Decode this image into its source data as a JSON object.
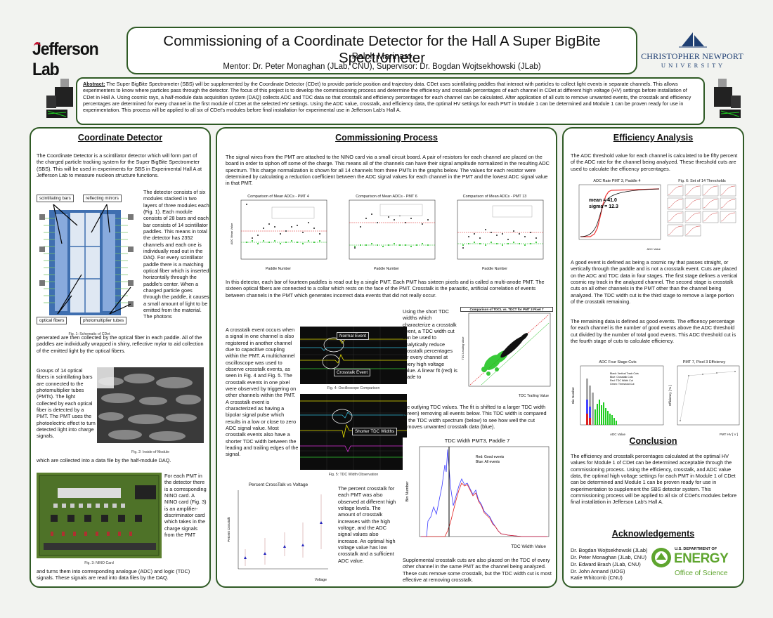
{
  "header": {
    "title": "Commissioning of a Coordinate Detector for the Hall A Super BigBite Spectrometer",
    "author": "Ralph Marinaro",
    "mentor": "Mentor:  Dr. Peter Monaghan (JLab, CNU), Supervisor: Dr. Bogdan Wojtsekhowski (JLab)",
    "logo_left": "Jefferson Lab",
    "logo_right_line1": "CHRISTOPHER NEWPORT",
    "logo_right_line2": "U N I V E R S I T Y"
  },
  "abstract": {
    "label": "Abstract:",
    "text": " The Super BigBite Spectrometer (SBS) will be supplemented by the Coordinate Detector (CDet) to provide particle position and trajectory data. CDet uses scintillating paddles that interact with particles to collect light events in separate channels. This allows experimenters to know where particles pass through the detector.  The focus of this project is to develop the commissioning process and determine the efficiency and crosstalk percentages of each channel in CDet at different high voltage (HV) settings before installation of CDet in Hall A. Using cosmic rays, a half-module data acquisition system (DAQ) collects ADC and TDC data so that crosstalk and efficiency percentages for each channel can be calculated. After application of all cuts to remove unwanted events, the crosstalk and efficiency percentages are determined for every channel in the first module of CDet at the selected HV settings. Using the ADC value, crosstalk, and efficiency data, the optimal HV settings for each PMT in Module 1 can be determined and Module 1 can be proven ready for use in experimentation. This process will be applied to all six of CDet's modules before final installation for experimental use in Jefferson Lab's Hall A."
  },
  "left": {
    "title": "Coordinate Detector",
    "p1": "The Coordinate Detector is a scintillator detector which will form part of the charged particle tracking system for the Super BigBite Spectrometer (SBS). This will be used in experiments for SBS in Experimental Hall A at Jefferson Lab to measure nucleon structure functions.",
    "labels": [
      "scintillating bars",
      "reflecting mirrors",
      "optical fibers",
      "photomultiplier tubes"
    ],
    "p2": "The detector consists of six modules stacked in two layers of three modules each (Fig. 1). Each module consists of 28 bars and each bar consists of 14 scintillator paddles. This means in total the detector has 2352 channels and each one is individually read out in the DAQ. For every scintillator paddle there is a matching optical fiber which is inserted horizontally through the paddle's center. When a charged particle goes through the paddle, it causes a small amount of light to be emitted from the material. The photons",
    "p2b": "generated are then collected by the optical fiber in each paddle. All of the paddles are individually wrapped in shiny, reflective mylar to aid collection of the emitted light by the optical fibers.",
    "fig1": "Fig. 1: Schematic of CDet",
    "p3": "Groups of 14 optical fibers in scintillating bars are connected to the photomultiplier tubes (PMTs). The light collected by each optical fiber is detected by a PMT. The PMT uses the photoelectric effect to turn detected light into charge signals,",
    "p3b": "which are collected into a data file by the half-module DAQ.",
    "fig2": "Fig. 2: Inside of Module",
    "p4": "For each PMT in the detector there is a corresponding NINO card. A NINO card (Fig. 3) is an amplifier-discriminator card which takes in the charge signals from the PMT",
    "p4b": "and turns them into corresponding analogue (ADC) and logic (TDC) signals. These signals are read into data files by the DAQ.",
    "fig3": "Fig. 3: NINO Card"
  },
  "middle": {
    "title": "Commissioning Process",
    "p1": "The signal wires from the PMT are attached to the NINO card via a small circuit board. A pair of resistors for each channel are placed on the board in order to siphon off some of the charge. This means all of the channels can have their signal amplitude normalized in the resulting ADC spectrum. This charge normalization is shown for all 14 channels from three PMTs in the graphs below. The values for each resistor were determined by calculating a reduction coefficient between the ADC signal values for each channel in the PMT and the lowest ADC signal value in that PMT.",
    "p2": "In this detector, each bar of fourteen paddles is read out by a single PMT. Each PMT has sixteen pixels and is called a multi-anode PMT. The sixteen optical fibers are connected to a collar which rests on the face of the PMT. Crosstalk is the parasitic, artificial correlation of events between channels in the PMT which generates incorrect data events that did not really occur.",
    "p3": "A crosstalk event occurs when a signal in one channel is also registered in another channel due to capacitive coupling within the PMT. A multichannel oscilloscope was used to observe crosstalk events, as seen in Fig. 4 and Fig. 5. The crosstalk events in one pixel were observed by triggering on other channels within the PMT. A crosstalk event is characterized as having a bipolar signal pulse which results in a low or close to zero ADC signal value. Most crosstalk events also have a shorter TDC width between the leading and trailing edges of the signal.",
    "p4": "Using the short TDC widths which characterize a crosstalk event, a TDC width cut can be used to analytically reduce crosstalk percentages for every channel at every high voltage value. A linear fit (red) is made to",
    "p4b": "the outlying TDC values. The fit is shifted to a larger TDC width (green) removing all events below. This TDC width is compared to the TDC width spectrum (below) to see how well the cut removes unwanted crosstalk data (blue).",
    "p5": "The percent crosstalk for each PMT was also observed at different high voltage levels. The amount of crosstalk increases with the high voltage, and the ADC signal values also increase. An optimal high voltage value has low crosstalk and a sufficient ADC value.",
    "p6": "Supplemental crosstalk cuts are also placed on the TDC of every other channel in the same PMT as the channel being analyzed. These cuts remove some crosstalk, but the TDC width cut is most effective at removing crosstalk.",
    "adc_plot_titles": [
      "Comparison of Mean ADCs - PMT 4",
      "Comparison of Mean ADCs - PMT 6",
      "Comparison of Mean ADCs - PMT 13"
    ],
    "adc_xlabel": "Paddle Number",
    "adc_ylabel": "ADC Mean Value",
    "adc_legend": [
      "run 1306: Before resistors",
      "run 1388: After resistors"
    ],
    "osc_labels": [
      "Normal Event",
      "Crosstalk Event",
      "Shorter TDC Widths"
    ],
    "fig4": "Fig. 4: Oscilloscope Comparison",
    "fig5": "Fig. 5: TDC Width Observation",
    "tdc_title": "Comparison of TDCL vs. TDCT for PMT 3 Pixel 7",
    "tdc_xlabel": "TDC Trailing Value",
    "tdc_ylabel": "TDC Leading Value",
    "ct_title": "Percent CrossTalk vs Voltage",
    "ct_xlabel": "Voltage",
    "ct_ylabel": "Percent Crosstalk",
    "tw_title": "TDC Width PMT3, Paddle 7",
    "tw_xlabel": "TDC Width Value",
    "tw_ylabel": "Bin Number",
    "tw_legend": [
      "Red: Good events",
      "Blue: All events"
    ]
  },
  "right": {
    "title": "Efficiency Analysis",
    "p1": "The ADC threshold value for each channel is calculated to be fifty percent of the ADC rate for the channel being analyzed. These threshold cuts are used to calculate the efficency percentages.",
    "rate_title": "ADC Rate PMT 3, Paddle 4",
    "rate_stats": [
      "mean = 41.0",
      "sigma = 12.3"
    ],
    "rate_xlabel": "ADC Value",
    "thresh_title": "Fig. 6: Set of 14 Thresholds",
    "p2": "A good event is defined as being a cosmic ray that passes straight, or vertically through the paddle and is not a crosstalk event. Cuts are placed on the ADC and TDC data in four stages. The first stage defines a vertical cosmic ray track in the analyzed channel. The second stage is crosstalk cuts on all other channels in the PMT other than the channel being analyzed. The TDC width cut is the third stage to remove a large portion of the crosstalk remaining.",
    "p3": "The remaining data is defined as good events. The efficency percentage for each channel is the number of good events above the ADC threshold cut divided by the number of total good events. This ADC threshold cut is the fourth stage of cuts to calculate efficiency.",
    "cuts_title": "ADC Four Stage Cuts",
    "cuts_legend": [
      "Black: Vertical Track Cuts",
      "Blue: Crosstalk Cuts",
      "Red: TDC Width Cut",
      "Green: Threshold Cut"
    ],
    "cuts_xlabel": "ADC Value",
    "cuts_ylabel": "Bin Number",
    "eff_title": "PMT 7, Pixel 3 Efficiency",
    "eff_xlabel": "PMT HV [ V ]",
    "eff_ylabel": "Efficiency [ % ]",
    "conclusion_title": "Conclusion",
    "conclusion": "The efficiency and crosstalk percentages calculated at the optimal HV values for Module 1 of CDet can be determined acceptable through the commissioning process. Using the efficiency, crosstalk, and ADC value data, the optimal high voltage settings for each PMT in Module 1 of CDet can be determined and Module 1 can be proven ready for use in experimentation to supplement the SBS detector system. This commissioning process will be applied to all six of CDet's modules before final installation in Jefferson Lab's Hall A.",
    "ack_title": "Acknowledgements",
    "ack": [
      "Dr. Bogdan Wojtsekhowski (JLab)",
      "Dr. Peter Monaghan (JLab, CNU)",
      "Dr. Edward Brash (JLab, CNU)",
      "Dr. John Annand (UOG)",
      "Katie Whitcomb (CNU)"
    ],
    "doe_line1": "U.S. DEPARTMENT OF",
    "doe_line2": "ENERGY",
    "doe_line3": "Office of Science"
  },
  "colors": {
    "frame": "#2f5a25",
    "accent_red": "#d22222",
    "accent_green": "#17b317",
    "doe_green": "#5fa52f",
    "cnu_blue": "#1f3f73"
  }
}
